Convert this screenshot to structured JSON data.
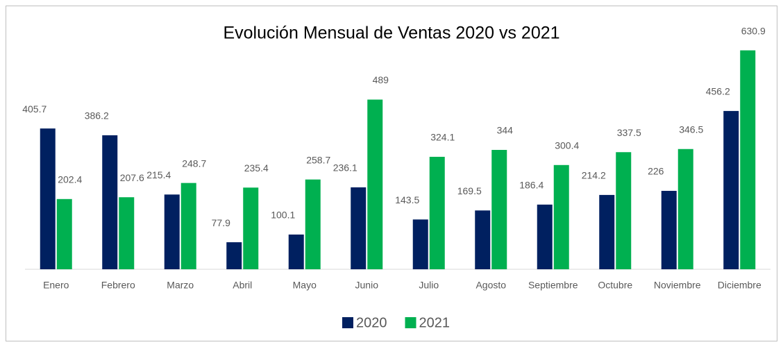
{
  "chart_data": {
    "type": "bar",
    "title": "Evolución Mensual de Ventas 2020 vs 2021",
    "categories": [
      "Enero",
      "Febrero",
      "Marzo",
      "Abril",
      "Mayo",
      "Junio",
      "Julio",
      "Agosto",
      "Septiembre",
      "Octubre",
      "Noviembre",
      "Diciembre"
    ],
    "series": [
      {
        "name": "2020",
        "color": "#002060",
        "values": [
          405.7,
          386.2,
          215.4,
          77.9,
          100.1,
          236.1,
          143.5,
          169.5,
          186.4,
          214.2,
          226,
          456.2
        ]
      },
      {
        "name": "2021",
        "color": "#00b050",
        "values": [
          202.4,
          207.6,
          248.7,
          235.4,
          258.7,
          489,
          324.1,
          344,
          300.4,
          337.5,
          346.5,
          630.9
        ]
      }
    ],
    "ylim": [
      0,
      700
    ],
    "legend": "bottom"
  }
}
